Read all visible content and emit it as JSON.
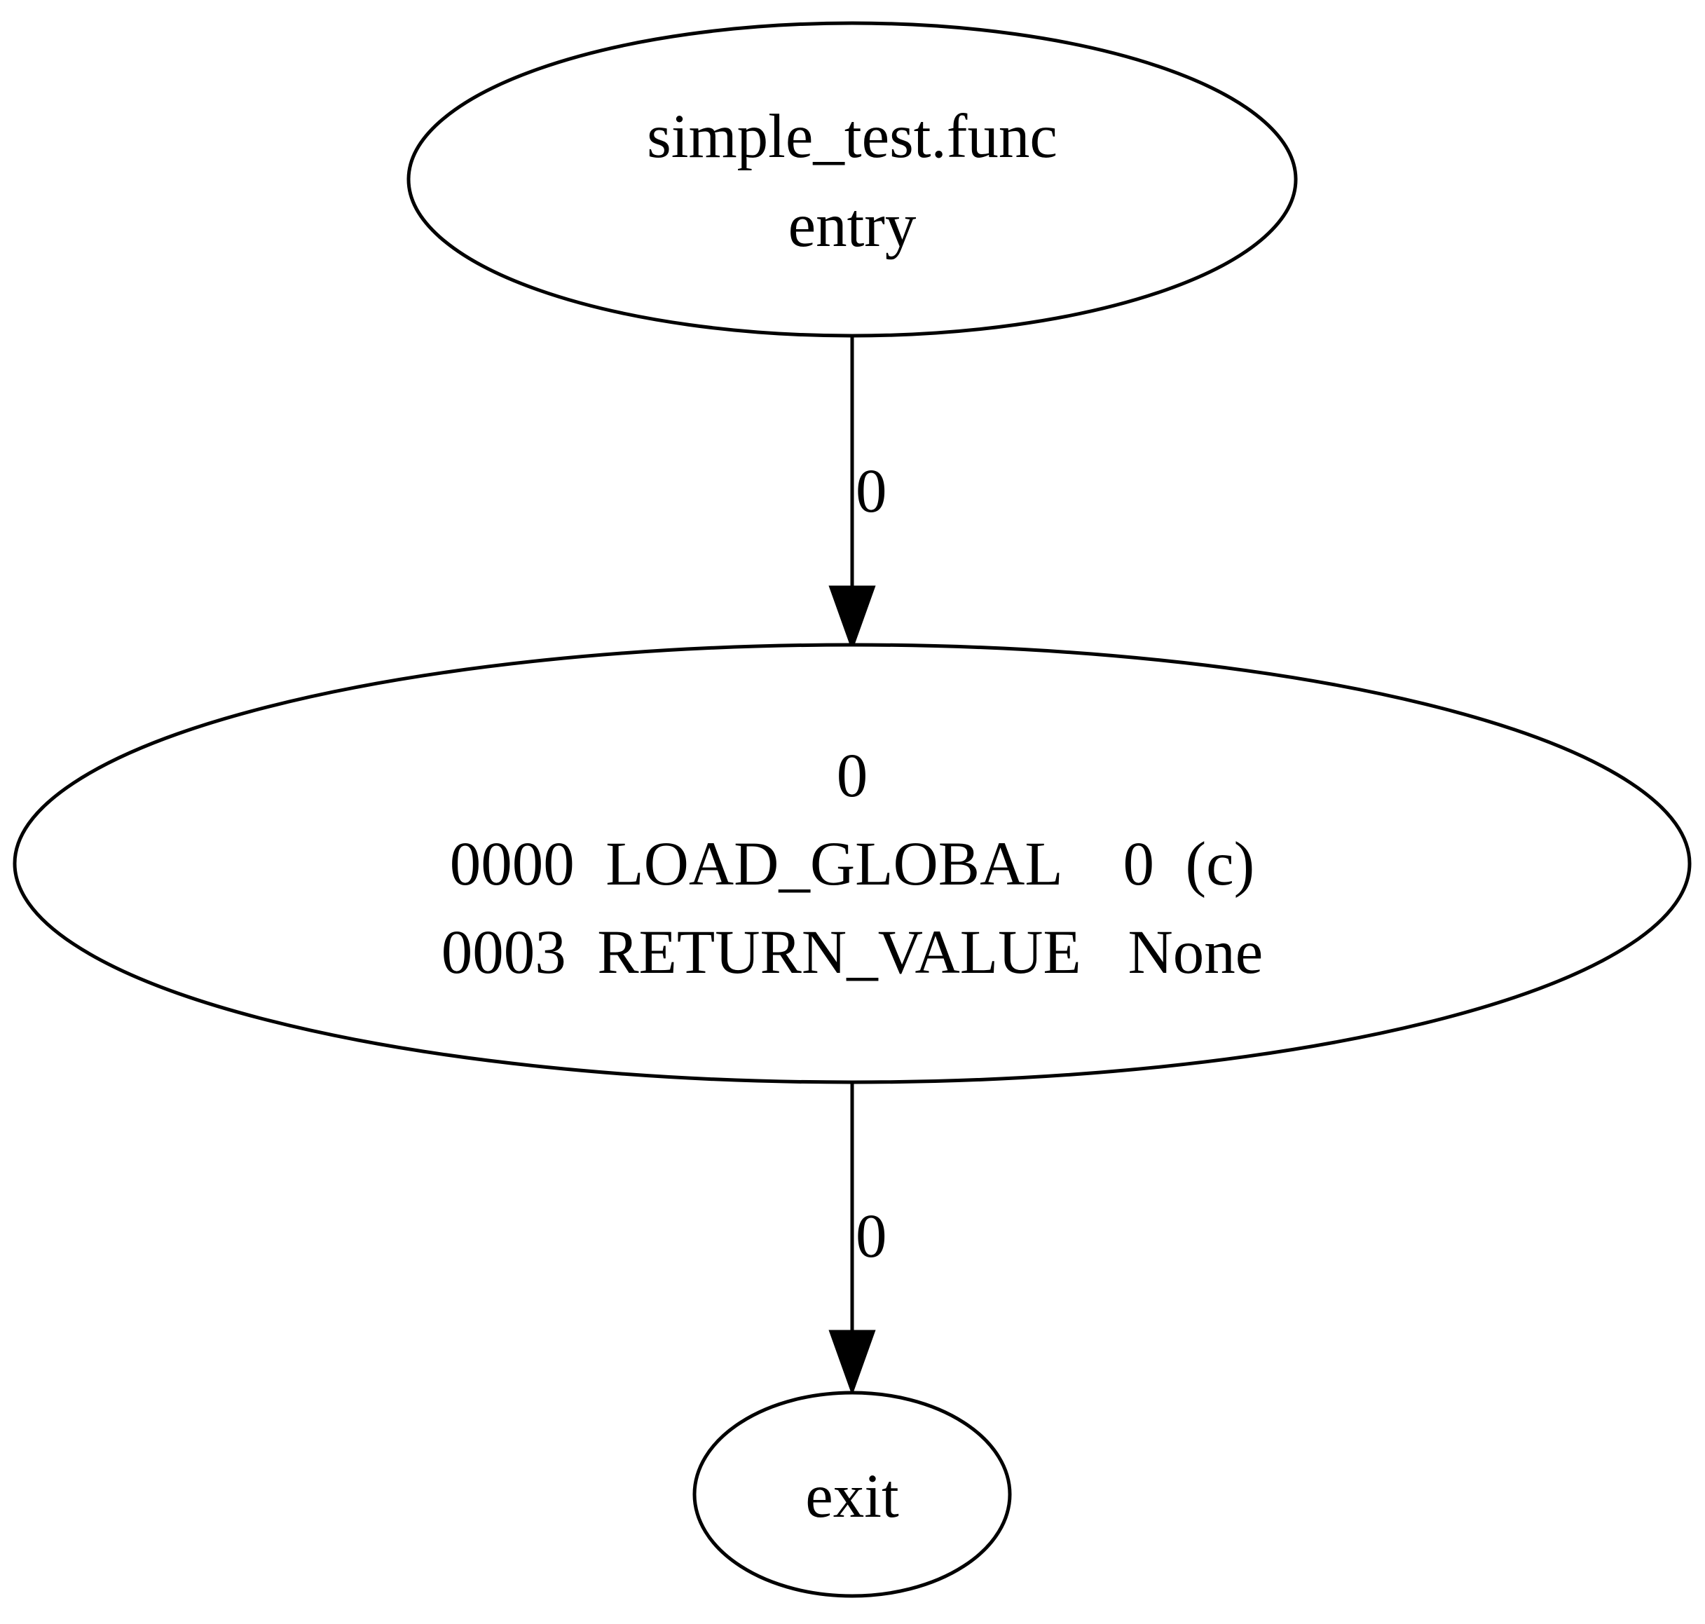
{
  "nodes": {
    "entry": {
      "lines": [
        "simple_test.func",
        "entry"
      ]
    },
    "block0": {
      "lines": [
        "0",
        "0000  LOAD_GLOBAL    0  (c)",
        "0003  RETURN_VALUE   None"
      ]
    },
    "exit": {
      "lines": [
        "exit"
      ]
    }
  },
  "edges": [
    {
      "from": "entry",
      "to": "block0",
      "label": "0"
    },
    {
      "from": "block0",
      "to": "exit",
      "label": "0"
    }
  ]
}
